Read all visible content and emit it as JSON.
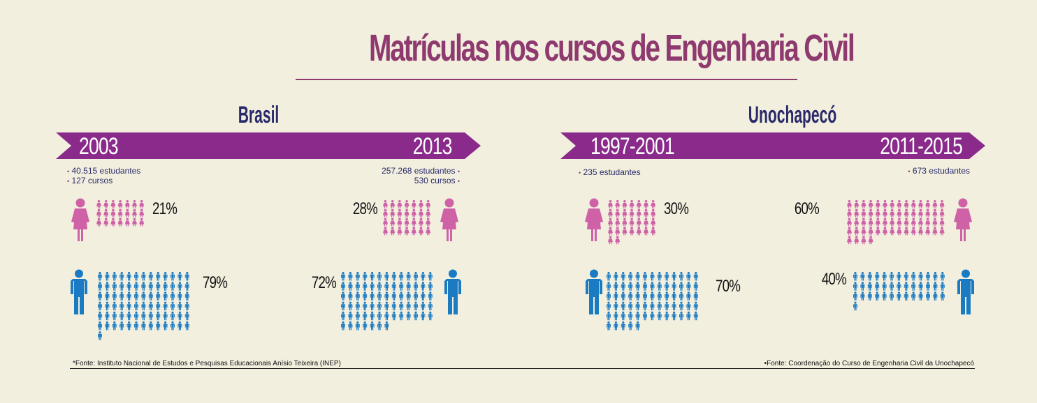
{
  "title": "Matrículas nos cursos de Engenharia Civil",
  "colors": {
    "female": "#cf61a6",
    "male": "#1b7bc2",
    "banner": "#8a2a8a",
    "title": "#8e3a6e",
    "heading": "#2a2a6a"
  },
  "brasil": {
    "heading": "Brasil",
    "year_start": "2003",
    "year_end": "2013",
    "start_students": "40.515 estudantes",
    "start_courses": "127 cursos",
    "end_students": "257.268 estudantes",
    "end_courses": "530 cursos"
  },
  "uno": {
    "heading": "Unochapecó",
    "year_start": "1997-2001",
    "year_end": "2011-2015",
    "start_students": "235 estudantes",
    "end_students": "673 estudantes"
  },
  "footnote_left": "*Fonte: Instituto Nacional de Estudos e Pesquisas Educacionais Anísio Teixeira (INEP)",
  "footnote_right": "•Fonte: Coordenação do Curso de Engenharia Civil da Unochapecó",
  "chart_data": {
    "type": "pictogram",
    "title": "Matrículas nos cursos de Engenharia Civil",
    "series": [
      {
        "name": "Mulheres",
        "values": [
          21,
          28,
          30,
          60
        ]
      },
      {
        "name": "Homens",
        "values": [
          79,
          72,
          70,
          40
        ]
      }
    ],
    "categories": [
      "Brasil 2003",
      "Brasil 2013",
      "Unochapecó 1997-2001",
      "Unochapecó 2011-2015"
    ],
    "labels": {
      "female": [
        "21%",
        "28%",
        "30%",
        "60%"
      ],
      "male": [
        "79%",
        "72%",
        "70%",
        "40%"
      ]
    }
  }
}
